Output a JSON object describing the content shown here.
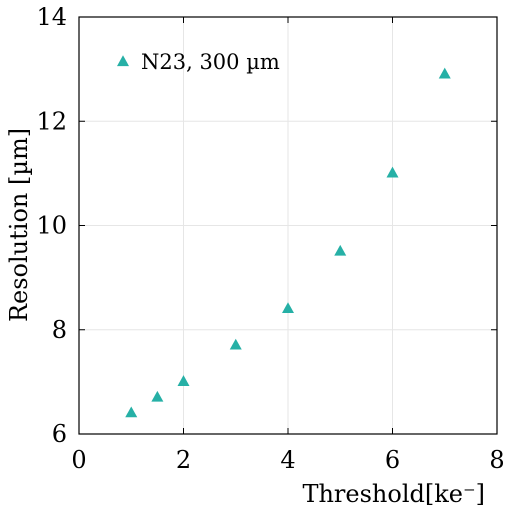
{
  "chart_data": {
    "type": "scatter",
    "title": "",
    "xlabel": "Threshold[ke⁻]",
    "ylabel": "Resolution [µm]",
    "xlim": [
      0,
      8
    ],
    "ylim": [
      6,
      14
    ],
    "xticks": [
      0,
      2,
      4,
      6,
      8
    ],
    "yticks": [
      6,
      8,
      10,
      12,
      14
    ],
    "xtick_labels": [
      "0",
      "2",
      "4",
      "6",
      "8"
    ],
    "ytick_labels": [
      "6",
      "8",
      "10",
      "12",
      "14"
    ],
    "grid": true,
    "legend_position": "top-left",
    "series": [
      {
        "name": "N23, 300 µm",
        "marker": "triangle",
        "color": "#26b0a6",
        "x": [
          1,
          1.5,
          2,
          3,
          4,
          5,
          6,
          7
        ],
        "y": [
          6.4,
          6.7,
          7.0,
          7.7,
          8.4,
          9.5,
          11.0,
          12.9
        ]
      }
    ]
  }
}
